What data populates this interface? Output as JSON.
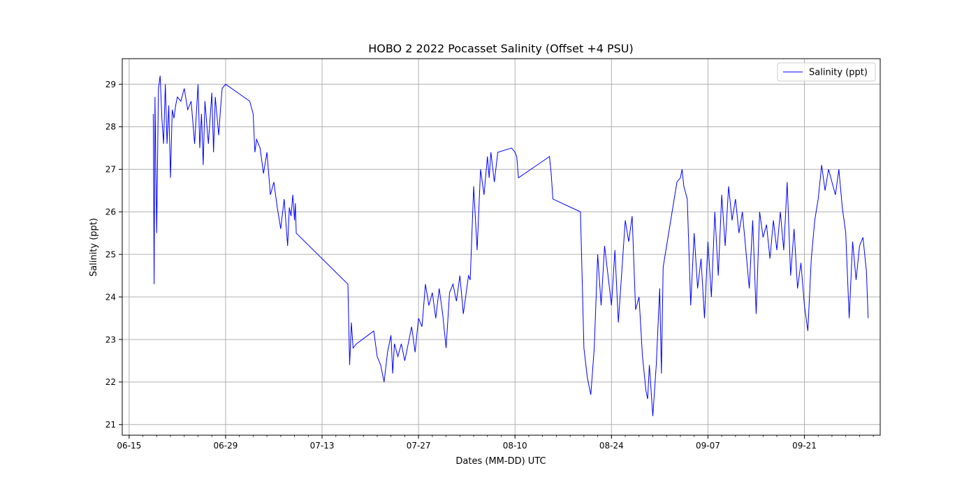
{
  "chart_data": {
    "type": "line",
    "title": "HOBO 2 2022 Pocasset Salinity (Offset +4 PSU)",
    "xlabel": "Dates (MM-DD) UTC",
    "ylabel": "Salinity (ppt)",
    "xlim": [
      "2022-06-14",
      "2022-10-02"
    ],
    "ylim": [
      20.75,
      29.6
    ],
    "xticks": [
      "06-15",
      "06-29",
      "07-13",
      "07-27",
      "08-10",
      "08-24",
      "09-07",
      "09-21"
    ],
    "yticks": [
      21,
      22,
      23,
      24,
      25,
      26,
      27,
      28,
      29
    ],
    "grid": true,
    "legend_position": "top-right",
    "line_color": "#0000ff",
    "series": [
      {
        "name": "Salinity (ppt)",
        "x": [
          "2022-06-18T12:00",
          "2022-06-18T15:00",
          "2022-06-18T18:00",
          "2022-06-19T00:00",
          "2022-06-19T06:00",
          "2022-06-19T12:00",
          "2022-06-19T18:00",
          "2022-06-20T00:00",
          "2022-06-20T06:00",
          "2022-06-20T12:00",
          "2022-06-20T18:00",
          "2022-06-21T00:00",
          "2022-06-21T06:00",
          "2022-06-21T12:00",
          "2022-06-21T18:00",
          "2022-06-22T00:00",
          "2022-06-22T12:00",
          "2022-06-23T00:00",
          "2022-06-23T12:00",
          "2022-06-24T00:00",
          "2022-06-24T12:00",
          "2022-06-25T00:00",
          "2022-06-25T06:00",
          "2022-06-25T12:00",
          "2022-06-25T18:00",
          "2022-06-26T00:00",
          "2022-06-26T12:00",
          "2022-06-27T00:00",
          "2022-06-27T06:00",
          "2022-06-27T12:00",
          "2022-06-28T00:00",
          "2022-06-28T06:00",
          "2022-06-28T12:00",
          "2022-06-29T00:00",
          "2022-07-02T12:00",
          "2022-07-03T00:00",
          "2022-07-03T06:00",
          "2022-07-03T12:00",
          "2022-07-04T00:00",
          "2022-07-04T12:00",
          "2022-07-05T00:00",
          "2022-07-05T12:00",
          "2022-07-06T00:00",
          "2022-07-06T12:00",
          "2022-07-07T00:00",
          "2022-07-07T12:00",
          "2022-07-08T00:00",
          "2022-07-08T06:00",
          "2022-07-08T12:00",
          "2022-07-08T18:00",
          "2022-07-09T00:00",
          "2022-07-09T03:00",
          "2022-07-09T06:00",
          "2022-07-16T18:00",
          "2022-07-17T00:00",
          "2022-07-17T06:00",
          "2022-07-17T12:00",
          "2022-07-18T00:00",
          "2022-07-20T12:00",
          "2022-07-21T00:00",
          "2022-07-21T06:00",
          "2022-07-21T12:00",
          "2022-07-22T00:00",
          "2022-07-22T12:00",
          "2022-07-23T00:00",
          "2022-07-23T06:00",
          "2022-07-23T12:00",
          "2022-07-24T00:00",
          "2022-07-24T12:00",
          "2022-07-25T00:00",
          "2022-07-25T12:00",
          "2022-07-26T00:00",
          "2022-07-26T12:00",
          "2022-07-27T00:00",
          "2022-07-27T12:00",
          "2022-07-28T00:00",
          "2022-07-28T12:00",
          "2022-07-29T00:00",
          "2022-07-29T12:00",
          "2022-07-30T00:00",
          "2022-07-30T12:00",
          "2022-07-31T00:00",
          "2022-07-31T12:00",
          "2022-08-01T00:00",
          "2022-08-01T12:00",
          "2022-08-02T00:00",
          "2022-08-02T12:00",
          "2022-08-03T00:00",
          "2022-08-03T06:00",
          "2022-08-03T12:00",
          "2022-08-04T00:00",
          "2022-08-04T12:00",
          "2022-08-05T00:00",
          "2022-08-05T12:00",
          "2022-08-06T00:00",
          "2022-08-06T06:00",
          "2022-08-06T12:00",
          "2022-08-07T00:00",
          "2022-08-07T12:00",
          "2022-08-09T12:00",
          "2022-08-10T00:00",
          "2022-08-10T06:00",
          "2022-08-10T12:00",
          "2022-08-15T00:00",
          "2022-08-15T06:00",
          "2022-08-15T12:00",
          "2022-08-19T12:00",
          "2022-08-20T00:00",
          "2022-08-20T12:00",
          "2022-08-21T00:00",
          "2022-08-21T12:00",
          "2022-08-22T00:00",
          "2022-08-22T12:00",
          "2022-08-23T00:00",
          "2022-08-23T12:00",
          "2022-08-24T00:00",
          "2022-08-24T12:00",
          "2022-08-25T00:00",
          "2022-08-25T12:00",
          "2022-08-26T00:00",
          "2022-08-26T12:00",
          "2022-08-27T00:00",
          "2022-08-27T12:00",
          "2022-08-28T00:00",
          "2022-08-28T12:00",
          "2022-08-29T00:00",
          "2022-08-29T06:00",
          "2022-08-29T12:00",
          "2022-08-30T00:00",
          "2022-08-30T12:00",
          "2022-08-31T00:00",
          "2022-08-31T06:00",
          "2022-08-31T12:00",
          "2022-09-02T12:00",
          "2022-09-03T00:00",
          "2022-09-03T06:00",
          "2022-09-03T12:00",
          "2022-09-04T00:00",
          "2022-09-04T12:00",
          "2022-09-05T00:00",
          "2022-09-05T12:00",
          "2022-09-06T00:00",
          "2022-09-06T12:00",
          "2022-09-07T00:00",
          "2022-09-07T12:00",
          "2022-09-08T00:00",
          "2022-09-08T12:00",
          "2022-09-09T00:00",
          "2022-09-09T12:00",
          "2022-09-10T00:00",
          "2022-09-10T12:00",
          "2022-09-11T00:00",
          "2022-09-11T12:00",
          "2022-09-12T00:00",
          "2022-09-12T12:00",
          "2022-09-13T00:00",
          "2022-09-13T12:00",
          "2022-09-14T00:00",
          "2022-09-14T12:00",
          "2022-09-15T00:00",
          "2022-09-15T12:00",
          "2022-09-16T00:00",
          "2022-09-16T12:00",
          "2022-09-17T00:00",
          "2022-09-17T12:00",
          "2022-09-18T00:00",
          "2022-09-18T12:00",
          "2022-09-19T00:00",
          "2022-09-19T12:00",
          "2022-09-20T00:00",
          "2022-09-20T12:00",
          "2022-09-21T00:00",
          "2022-09-21T12:00",
          "2022-09-22T00:00",
          "2022-09-22T12:00",
          "2022-09-23T00:00",
          "2022-09-23T12:00",
          "2022-09-24T00:00",
          "2022-09-24T12:00",
          "2022-09-25T00:00",
          "2022-09-25T12:00",
          "2022-09-26T00:00",
          "2022-09-26T12:00",
          "2022-09-27T00:00",
          "2022-09-27T12:00",
          "2022-09-28T00:00",
          "2022-09-28T12:00",
          "2022-09-29T00:00",
          "2022-09-29T12:00",
          "2022-09-30T00:00",
          "2022-09-30T06:00"
        ],
        "y": [
          28.3,
          24.3,
          28.7,
          25.5,
          28.9,
          29.2,
          28.2,
          27.6,
          29.0,
          27.6,
          28.5,
          26.8,
          28.4,
          28.2,
          28.5,
          28.7,
          28.6,
          28.9,
          28.4,
          28.6,
          27.6,
          29.0,
          27.5,
          28.3,
          27.1,
          28.6,
          27.6,
          28.8,
          27.4,
          28.7,
          27.8,
          28.4,
          28.9,
          29.0,
          28.6,
          28.3,
          27.4,
          27.7,
          27.5,
          26.9,
          27.4,
          26.4,
          26.7,
          26.1,
          25.6,
          26.3,
          25.2,
          26.1,
          25.9,
          26.4,
          25.8,
          26.2,
          25.5,
          24.3,
          22.4,
          23.4,
          22.8,
          22.9,
          23.2,
          22.6,
          22.5,
          22.4,
          22.0,
          22.7,
          23.1,
          22.2,
          22.9,
          22.6,
          22.9,
          22.5,
          22.9,
          23.3,
          22.7,
          23.5,
          23.3,
          24.3,
          23.8,
          24.1,
          23.5,
          24.2,
          23.6,
          22.8,
          24.1,
          24.3,
          23.9,
          24.5,
          23.6,
          24.2,
          24.5,
          24.4,
          26.6,
          25.1,
          27.0,
          26.4,
          27.3,
          26.8,
          27.4,
          26.7,
          27.4,
          27.5,
          27.4,
          27.3,
          26.8,
          27.3,
          26.9,
          26.3,
          26.0,
          22.8,
          22.1,
          21.7,
          22.8,
          25.0,
          23.8,
          25.2,
          24.5,
          23.8,
          25.1,
          23.4,
          24.6,
          25.8,
          25.3,
          25.9,
          23.7,
          24.0,
          22.6,
          21.8,
          21.6,
          22.4,
          21.2,
          22.4,
          24.2,
          22.2,
          24.7,
          26.7,
          26.8,
          27.0,
          26.6,
          26.3,
          23.8,
          25.5,
          24.2,
          24.9,
          23.5,
          25.3,
          24.0,
          26.0,
          24.5,
          26.4,
          25.2,
          26.6,
          25.8,
          26.3,
          25.5,
          26.0,
          25.1,
          24.2,
          25.8,
          23.6,
          26.0,
          25.4,
          25.7,
          24.9,
          25.8,
          25.1,
          26.0,
          25.1,
          26.7,
          24.5,
          25.6,
          24.2,
          24.8,
          23.8,
          23.2,
          24.9,
          25.8,
          26.3,
          27.1,
          26.5,
          27.0,
          26.7,
          26.4,
          27.0,
          26.1,
          25.5,
          23.5,
          25.3,
          24.4,
          25.2,
          25.4,
          24.6,
          23.5
        ]
      }
    ]
  }
}
